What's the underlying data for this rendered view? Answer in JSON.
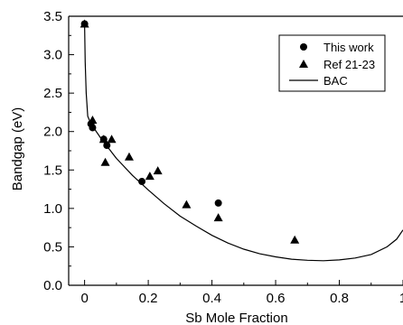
{
  "chart_data": {
    "type": "scatter",
    "xlabel": "Sb Mole Fraction",
    "ylabel": "Bandgap (eV)",
    "xlim": [
      -0.05,
      1.0
    ],
    "ylim": [
      0.0,
      3.5
    ],
    "x_ticks": [
      0,
      0.2,
      0.4,
      0.6,
      0.8,
      1
    ],
    "x_tick_labels": [
      "0",
      "0.2",
      "0.4",
      "0.6",
      "0.8",
      "1"
    ],
    "y_ticks": [
      0.0,
      0.5,
      1.0,
      1.5,
      2.0,
      2.5,
      3.0,
      3.5
    ],
    "y_tick_labels": [
      "0.0",
      "0.5",
      "1.0",
      "1.5",
      "2.0",
      "2.5",
      "3.0",
      "3.5"
    ],
    "grid": false,
    "legend_position": "top-right",
    "series": [
      {
        "name": "This work",
        "kind": "scatter",
        "marker": "circle",
        "color": "#000000",
        "x": [
          0.0,
          0.02,
          0.025,
          0.06,
          0.07,
          0.18,
          0.42
        ],
        "y": [
          3.4,
          2.1,
          2.05,
          1.9,
          1.82,
          1.35,
          1.07
        ]
      },
      {
        "name": "Ref 21-23",
        "kind": "scatter",
        "marker": "triangle",
        "color": "#000000",
        "x": [
          0.0,
          0.025,
          0.06,
          0.065,
          0.085,
          0.14,
          0.205,
          0.23,
          0.32,
          0.42,
          0.66
        ],
        "y": [
          3.4,
          2.15,
          1.9,
          1.6,
          1.9,
          1.67,
          1.42,
          1.49,
          1.05,
          0.88,
          0.59
        ]
      },
      {
        "name": "BAC",
        "kind": "line",
        "color": "#000000",
        "x": [
          0.0,
          0.002,
          0.005,
          0.01,
          0.02,
          0.05,
          0.1,
          0.15,
          0.2,
          0.25,
          0.3,
          0.35,
          0.4,
          0.45,
          0.5,
          0.55,
          0.6,
          0.65,
          0.7,
          0.75,
          0.8,
          0.85,
          0.9,
          0.95,
          0.98,
          1.0
        ],
        "y": [
          3.4,
          2.9,
          2.5,
          2.2,
          2.1,
          1.92,
          1.65,
          1.43,
          1.24,
          1.06,
          0.9,
          0.77,
          0.65,
          0.55,
          0.47,
          0.41,
          0.37,
          0.34,
          0.325,
          0.32,
          0.33,
          0.355,
          0.4,
          0.5,
          0.6,
          0.72
        ]
      }
    ]
  }
}
